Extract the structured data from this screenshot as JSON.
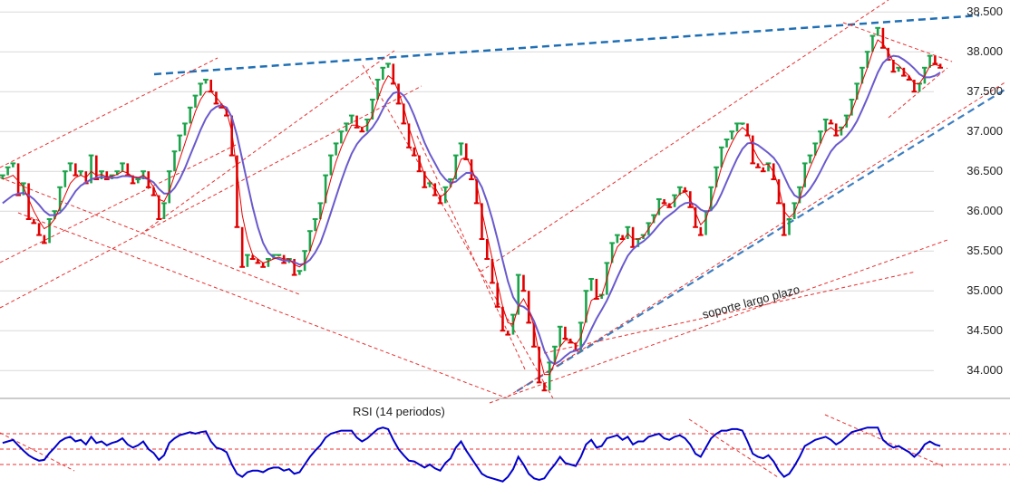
{
  "chart_data": {
    "type": "line",
    "title": "",
    "y_ticks": [
      "38.500",
      "38.000",
      "37.500",
      "37.000",
      "36.500",
      "36.000",
      "35.500",
      "35.000",
      "34.500",
      "34.000"
    ],
    "y_tick_values": [
      38500,
      38000,
      37500,
      37000,
      36500,
      36000,
      35500,
      35000,
      34500,
      34000
    ],
    "ylim": [
      33650,
      38650
    ],
    "grid": true,
    "up_color": "#1aa34a",
    "down_color": "#e00000",
    "series": [
      {
        "type": "candlestick",
        "values": [
          36450,
          36550,
          36600,
          36200,
          36350,
          35900,
          35850,
          35700,
          35600,
          35900,
          36000,
          36300,
          36500,
          36600,
          36450,
          36500,
          36350,
          36700,
          36400,
          36500,
          36400,
          36450,
          36500,
          36600,
          36450,
          36350,
          36400,
          36500,
          36300,
          36200,
          35900,
          36100,
          36500,
          36750,
          36950,
          37100,
          37300,
          37450,
          37600,
          37650,
          37500,
          37350,
          37300,
          37200,
          36700,
          35800,
          35300,
          35450,
          35400,
          35350,
          35300,
          35400,
          35450,
          35450,
          35350,
          35400,
          35200,
          35250,
          35500,
          35750,
          35900,
          36100,
          36450,
          36700,
          36850,
          37000,
          37100,
          37200,
          37050,
          37000,
          37150,
          37400,
          37650,
          37800,
          37850,
          37600,
          37350,
          37100,
          36800,
          36700,
          36500,
          36300,
          36350,
          36200,
          36100,
          36300,
          36400,
          36700,
          36850,
          36650,
          36400,
          36100,
          35650,
          35400,
          35100,
          34800,
          34500,
          34450,
          34700,
          35200,
          35000,
          34600,
          34300,
          33850,
          33750,
          34100,
          34300,
          34550,
          34400,
          34350,
          34250,
          34600,
          35000,
          35150,
          34900,
          34950,
          35350,
          35600,
          35700,
          35650,
          35800,
          35550,
          35650,
          35700,
          35850,
          35950,
          36150,
          36100,
          36050,
          36200,
          36300,
          36250,
          36050,
          35800,
          35700,
          36000,
          36300,
          36550,
          36800,
          36900,
          37000,
          37100,
          37100,
          36950,
          36600,
          36550,
          36500,
          36600,
          36400,
          36100,
          35700,
          35900,
          36100,
          36300,
          36600,
          36700,
          36850,
          37000,
          37150,
          37100,
          36950,
          37050,
          37200,
          37400,
          37600,
          37800,
          38000,
          38200,
          38300,
          38050,
          37900,
          37750,
          37800,
          37700,
          37650,
          37500,
          37600,
          37800,
          37950,
          37850,
          37800
        ]
      },
      {
        "name": "",
        "type": "ma-short",
        "color": "#e60000",
        "values": [
          36400,
          36420,
          36450,
          36380,
          36300,
          36150,
          36000,
          35880,
          35780,
          35820,
          35900,
          36050,
          36200,
          36350,
          36420,
          36450,
          36420,
          36500,
          36450,
          36460,
          36430,
          36440,
          36460,
          36500,
          36480,
          36430,
          36420,
          36450,
          36400,
          36300,
          36150,
          36120,
          36250,
          36450,
          36650,
          36850,
          37050,
          37250,
          37400,
          37500,
          37500,
          37430,
          37350,
          37250,
          37000,
          36500,
          35950,
          35650,
          35450,
          35400,
          35350,
          35370,
          35400,
          35420,
          35400,
          35400,
          35330,
          35300,
          35350,
          35500,
          35700,
          35900,
          36150,
          36400,
          36620,
          36800,
          36950,
          37080,
          37080,
          37050,
          37080,
          37200,
          37400,
          37580,
          37700,
          37650,
          37500,
          37300,
          37050,
          36850,
          36650,
          36450,
          36380,
          36300,
          36180,
          36220,
          36300,
          36480,
          36650,
          36680,
          36550,
          36350,
          36000,
          35700,
          35400,
          35100,
          34800,
          34600,
          34580,
          34800,
          34900,
          34770,
          34550,
          34200,
          33950,
          33950,
          34100,
          34300,
          34380,
          34380,
          34320,
          34420,
          34650,
          34880,
          34920,
          34940,
          35150,
          35380,
          35550,
          35620,
          35720,
          35650,
          35650,
          35680,
          35780,
          35880,
          36020,
          36080,
          36070,
          36130,
          36220,
          36240,
          36150,
          35980,
          35830,
          35900,
          36100,
          36320,
          36550,
          36720,
          36860,
          36980,
          37050,
          37000,
          36800,
          36670,
          36580,
          36590,
          36490,
          36300,
          36000,
          35920,
          35980,
          36150,
          36380,
          36550,
          36700,
          36850,
          37000,
          37050,
          37000,
          37020,
          37110,
          37250,
          37430,
          37620,
          37800,
          38000,
          38150,
          38100,
          38000,
          37870,
          37830,
          37760,
          37700,
          37600,
          37600,
          37700,
          37820,
          37840,
          37820
        ]
      },
      {
        "name": "",
        "type": "ma-long",
        "color": "#6a5acd",
        "values": [
          36100,
          36150,
          36200,
          36220,
          36230,
          36200,
          36150,
          36080,
          36000,
          35950,
          35950,
          35980,
          36050,
          36150,
          36250,
          36320,
          36360,
          36400,
          36420,
          36430,
          36420,
          36420,
          36420,
          36440,
          36440,
          36430,
          36420,
          36420,
          36400,
          36360,
          36280,
          36220,
          36220,
          36290,
          36400,
          36540,
          36700,
          36860,
          37020,
          37160,
          37260,
          37310,
          37330,
          37300,
          37180,
          36950,
          36650,
          36350,
          36050,
          35800,
          35600,
          35480,
          35420,
          35400,
          35380,
          35380,
          35360,
          35330,
          35340,
          35390,
          35480,
          35600,
          35780,
          35980,
          36180,
          36380,
          36560,
          36720,
          36840,
          36920,
          36980,
          37050,
          37150,
          37280,
          37400,
          37480,
          37500,
          37450,
          37350,
          37200,
          37030,
          36860,
          36720,
          36600,
          36480,
          36400,
          36350,
          36370,
          36430,
          36480,
          36480,
          36420,
          36300,
          36120,
          35900,
          35650,
          35380,
          35120,
          34920,
          34820,
          34800,
          34750,
          34620,
          34450,
          34250,
          34120,
          34080,
          34120,
          34180,
          34230,
          34250,
          34280,
          34380,
          34520,
          34650,
          34760,
          34880,
          35020,
          35170,
          35310,
          35440,
          35520,
          35580,
          35620,
          35680,
          35750,
          35830,
          35900,
          35950,
          36000,
          36060,
          36100,
          36110,
          36080,
          36020,
          35990,
          36010,
          36090,
          36220,
          36370,
          36520,
          36660,
          36780,
          36850,
          36860,
          36830,
          36780,
          36730,
          36670,
          36580,
          36440,
          36300,
          36200,
          36160,
          36200,
          36280,
          36380,
          36500,
          36630,
          36750,
          36830,
          36880,
          36940,
          37020,
          37130,
          37270,
          37420,
          37580,
          37740,
          37860,
          37920,
          37950,
          37940,
          37900,
          37850,
          37790,
          37720,
          37680,
          37680,
          37700,
          37740
        ]
      }
    ],
    "annotations": [
      {
        "text": "soporte largo plazo"
      }
    ],
    "rsi_panel": {
      "title": "RSI (14 periodos)",
      "series_color": "#0000cc",
      "ylim": [
        10,
        90
      ],
      "levels": [
        30,
        50,
        70
      ],
      "values": [
        58,
        60,
        62,
        55,
        48,
        42,
        38,
        35,
        36,
        45,
        52,
        60,
        64,
        66,
        60,
        62,
        56,
        66,
        58,
        60,
        55,
        58,
        60,
        64,
        56,
        52,
        55,
        60,
        50,
        45,
        36,
        42,
        58,
        64,
        68,
        70,
        72,
        70,
        72,
        73,
        60,
        52,
        50,
        46,
        30,
        18,
        14,
        20,
        22,
        22,
        20,
        24,
        26,
        26,
        22,
        24,
        18,
        20,
        30,
        40,
        48,
        55,
        65,
        70,
        72,
        74,
        74,
        74,
        65,
        60,
        64,
        70,
        76,
        78,
        76,
        62,
        50,
        42,
        35,
        34,
        30,
        26,
        30,
        25,
        22,
        32,
        38,
        52,
        60,
        48,
        38,
        28,
        18,
        14,
        12,
        10,
        8,
        14,
        24,
        40,
        30,
        18,
        12,
        10,
        12,
        22,
        30,
        40,
        32,
        30,
        28,
        40,
        56,
        62,
        52,
        54,
        64,
        66,
        68,
        62,
        66,
        56,
        60,
        60,
        66,
        68,
        70,
        64,
        62,
        66,
        68,
        64,
        56,
        44,
        40,
        52,
        64,
        70,
        74,
        74,
        76,
        76,
        74,
        60,
        44,
        40,
        38,
        42,
        34,
        22,
        14,
        18,
        28,
        40,
        54,
        58,
        62,
        64,
        66,
        62,
        56,
        60,
        66,
        72,
        74,
        76,
        78,
        78,
        78,
        62,
        56,
        52,
        54,
        50,
        46,
        40,
        46,
        56,
        60,
        56,
        54
      ]
    }
  }
}
